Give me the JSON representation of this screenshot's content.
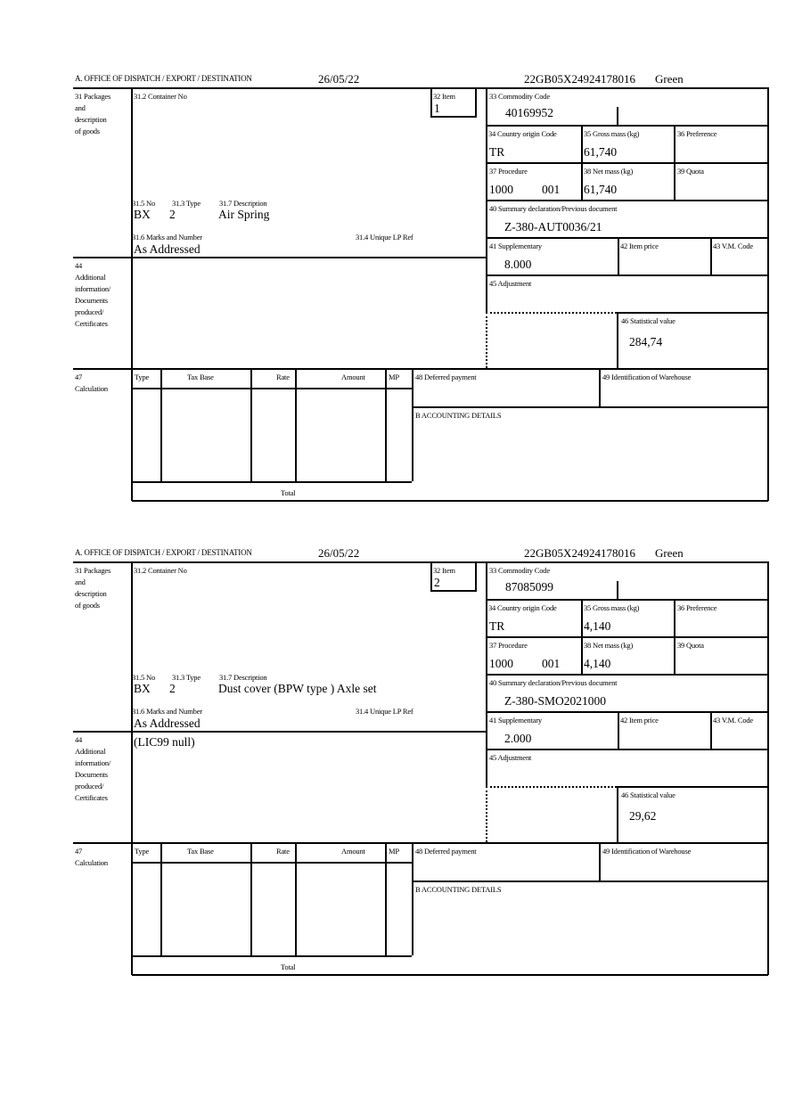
{
  "labels": {
    "office": "A. OFFICE OF DISPATCH / EXPORT / DESTINATION",
    "packages": "31 Packages and description of goods",
    "packages_lines": [
      "31 Packages",
      "and",
      "description",
      "of goods"
    ],
    "container": "31.2 Container No",
    "item": "32 Item",
    "no": "31.5 No",
    "type": "31.3 Type",
    "description": "31.7 Description",
    "marks": "31.6 Marks and Number",
    "unique_ref": "31.4 Unique LP Ref",
    "commodity": "33 Commodity Code",
    "country": "34 Country origin Code",
    "gross": "35 Gross mass (kg)",
    "preference": "36 Preference",
    "procedure": "37 Procedure",
    "net": "38 Net mass (kg)",
    "quota": "39 Quota",
    "summary": "40 Summary declaration/Previous document",
    "supplementary": "41 Supplementary",
    "item_price": "42 Item price",
    "vm_code": "43 V.M. Code",
    "additional_lines": [
      "44",
      "Additional",
      "information/",
      "Documents",
      "produced/",
      "Certificates"
    ],
    "adjustment": "45 Adjustment",
    "statistical": "46 Statistical value",
    "calc_lines": [
      "47",
      "Calculation"
    ],
    "calc_type": "Type",
    "calc_tax_base": "Tax Base",
    "calc_rate": "Rate",
    "calc_amount": "Amount",
    "calc_mp": "MP",
    "deferred": "48 Deferred payment",
    "warehouse": "49 Identification of Warehouse",
    "accounting": "B ACCOUNTING DETAILS",
    "total": "Total"
  },
  "forms": [
    {
      "date": "26/05/22",
      "reference": "22GB05X24924178016",
      "route": "Green",
      "item": "1",
      "no": "BX",
      "type": "2",
      "description": "Air Spring",
      "marks": "As Addressed",
      "commodity": "40169952",
      "country": "TR",
      "gross": "61,740",
      "procedure": "1000",
      "procedure_extra": "001",
      "net": "61,740",
      "summary": "Z-380-AUT0036/21",
      "supplementary": "8.000",
      "statistical": "284,74",
      "additional": ""
    },
    {
      "date": "26/05/22",
      "reference": "22GB05X24924178016",
      "route": "Green",
      "item": "2",
      "no": "BX",
      "type": "2",
      "description": "Dust cover (BPW type ) Axle set",
      "marks": "As Addressed",
      "commodity": "87085099",
      "country": "TR",
      "gross": "4,140",
      "procedure": "1000",
      "procedure_extra": "001",
      "net": "4,140",
      "summary": "Z-380-SMO2021000",
      "supplementary": "2.000",
      "statistical": "29,62",
      "additional": "(LIC99 null)"
    }
  ]
}
